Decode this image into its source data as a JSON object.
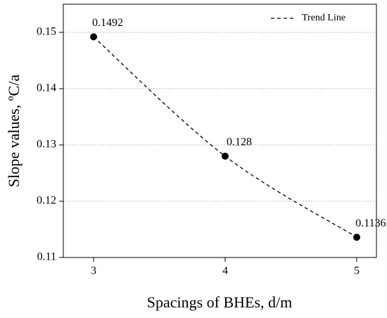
{
  "chart_data": {
    "type": "line",
    "x_label": "Spacings of BHEs, d/m",
    "y_label": "Slope values, ºC/a",
    "x": [
      3,
      4,
      5
    ],
    "series": [
      {
        "name": "Trend Line",
        "color": "#000000",
        "values": [
          0.1492,
          0.128,
          0.1136
        ]
      }
    ],
    "xlim": [
      2.77,
      5.15
    ],
    "xticks": [
      3,
      4,
      5
    ],
    "ylim": [
      0.11,
      0.155
    ],
    "yticks": [
      0.11,
      0.12,
      0.13,
      0.14,
      0.15
    ],
    "grid": true,
    "legend": "upper right"
  }
}
